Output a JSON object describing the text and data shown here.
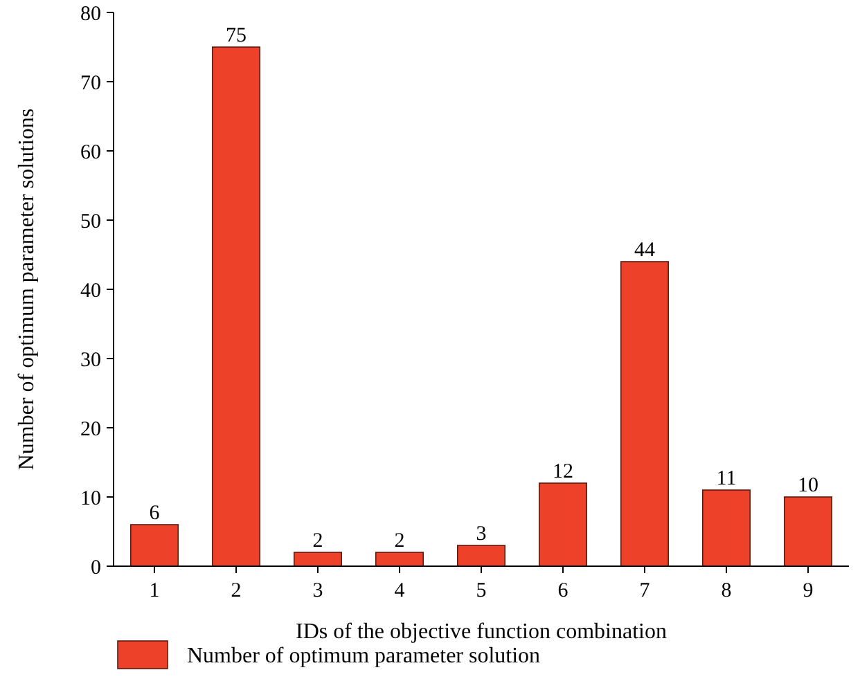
{
  "chart_data": {
    "type": "bar",
    "xlabel": "IDs of the objective function combination",
    "ylabel": "Number of optimum parameter solutions",
    "categories": [
      "1",
      "2",
      "3",
      "4",
      "5",
      "6",
      "7",
      "8",
      "9"
    ],
    "series": [
      {
        "name": "Number of optimum parameter solution",
        "color": "#ee4129",
        "values": [
          6,
          75,
          2,
          2,
          3,
          12,
          44,
          11,
          10
        ]
      }
    ],
    "ylim": [
      0,
      80
    ],
    "yticks": [
      0,
      10,
      20,
      30,
      40,
      50,
      60,
      70,
      80
    ],
    "data_labels": true,
    "legend": "bottom",
    "grid": false
  }
}
